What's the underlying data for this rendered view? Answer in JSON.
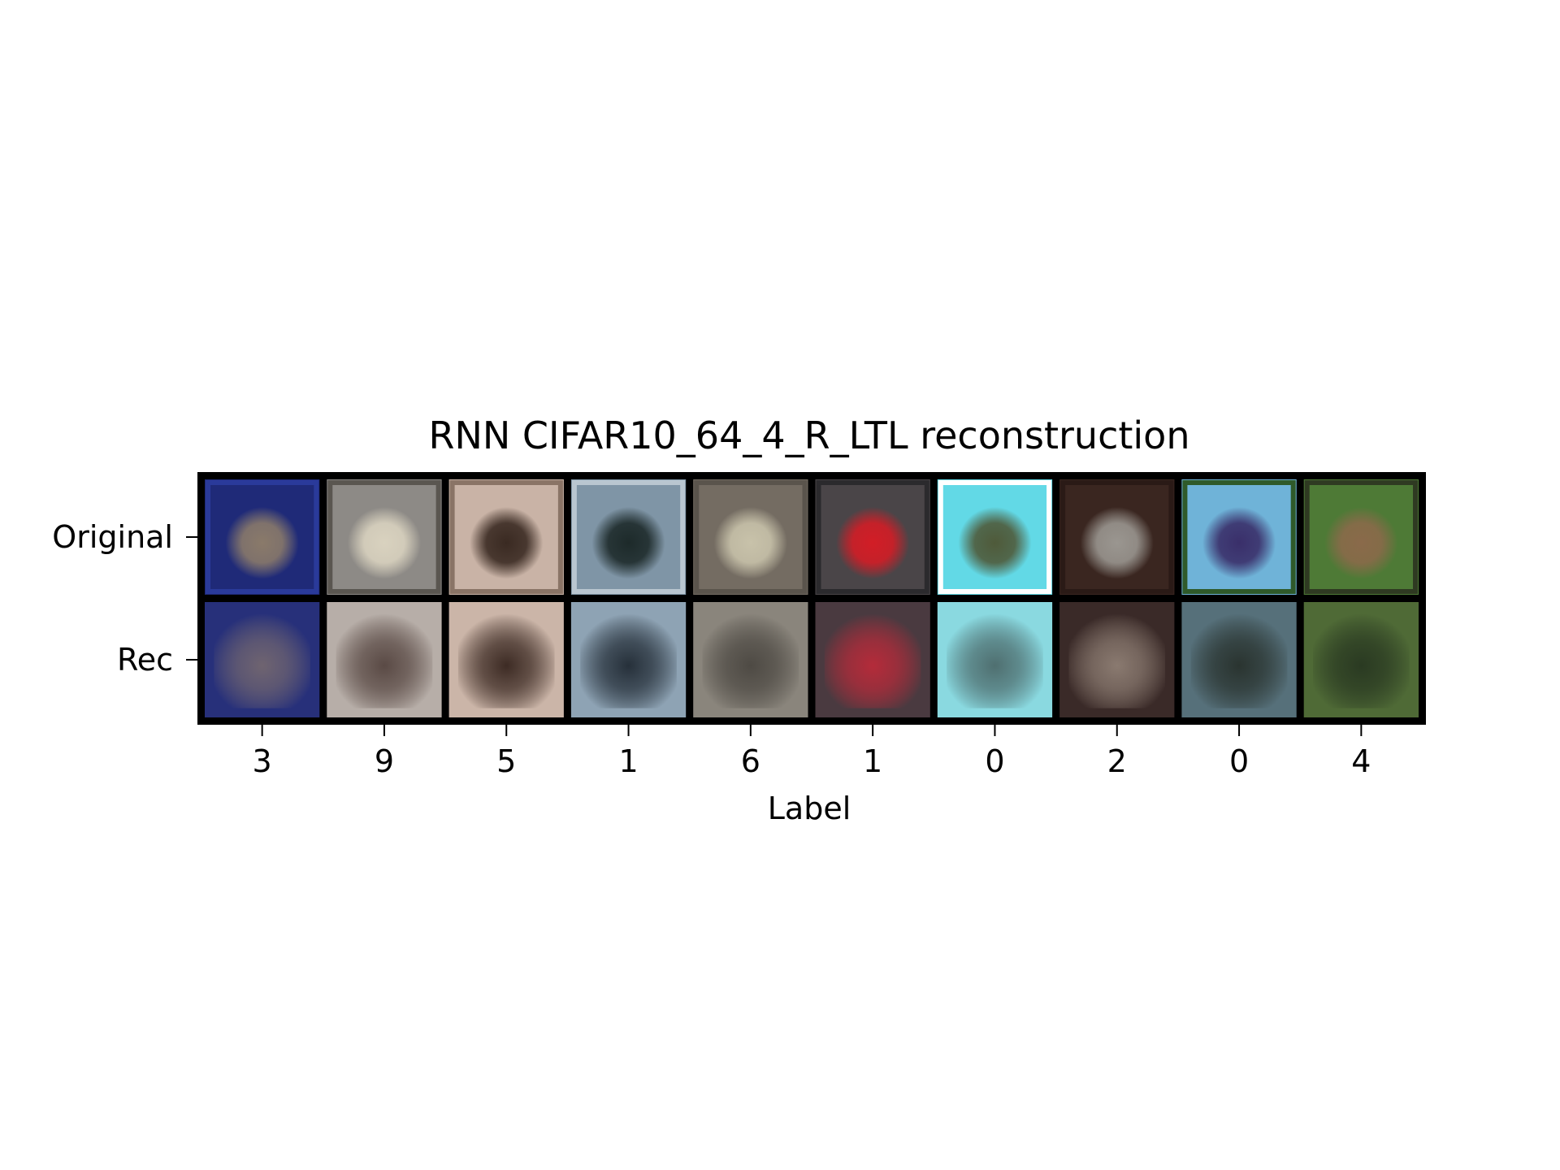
{
  "chart_data": {
    "type": "image-grid",
    "title": "RNN CIFAR10_64_4_R_LTL reconstruction",
    "xlabel": "Label",
    "ylabel": "",
    "row_labels": [
      "Original",
      "Rec"
    ],
    "x_tick_labels": [
      "3",
      "9",
      "5",
      "1",
      "6",
      "1",
      "0",
      "2",
      "0",
      "4"
    ],
    "grid": false,
    "samples": [
      {
        "label": "3",
        "original": {
          "bg": "#1f2a78",
          "fg": "#8a7a6a",
          "frame": "#2a3a9a"
        },
        "rec": {
          "bg": "#27307a",
          "fg": "#6f6470"
        }
      },
      {
        "label": "9",
        "original": {
          "bg": "#8d8a86",
          "fg": "#d9d2bf",
          "frame": "#5a5650"
        },
        "rec": {
          "bg": "#b7aea8",
          "fg": "#5a4a45"
        }
      },
      {
        "label": "5",
        "original": {
          "bg": "#c9b3a6",
          "fg": "#3a2a22",
          "frame": "#8a7466"
        },
        "rec": {
          "bg": "#cbb5a8",
          "fg": "#3d2b24"
        }
      },
      {
        "label": "1",
        "original": {
          "bg": "#7f95a6",
          "fg": "#1d2a2a",
          "frame": "#b9c6d0"
        },
        "rec": {
          "bg": "#8ea3b4",
          "fg": "#26303a"
        }
      },
      {
        "label": "6",
        "original": {
          "bg": "#746c62",
          "fg": "#c8c2aa",
          "frame": "#5a544c"
        },
        "rec": {
          "bg": "#8a857c",
          "fg": "#4e4a44"
        }
      },
      {
        "label": "1",
        "original": {
          "bg": "#4a4548",
          "fg": "#d21d26",
          "frame": "#2b2a2d"
        },
        "rec": {
          "bg": "#4a3a40",
          "fg": "#b42b3a"
        }
      },
      {
        "label": "0",
        "original": {
          "bg": "#62d9e6",
          "fg": "#4f5a3a",
          "frame": "#ffffff"
        },
        "rec": {
          "bg": "#8ad9e0",
          "fg": "#4f6f70"
        }
      },
      {
        "label": "2",
        "original": {
          "bg": "#3a2620",
          "fg": "#9a9690",
          "frame": "#2a1a16"
        },
        "rec": {
          "bg": "#3a2a28",
          "fg": "#8a7a70"
        }
      },
      {
        "label": "0",
        "original": {
          "bg": "#6fb3d8",
          "fg": "#3a2f6a",
          "frame": "#2f5a2a"
        },
        "rec": {
          "bg": "#56707a",
          "fg": "#2a3430"
        }
      },
      {
        "label": "4",
        "original": {
          "bg": "#4e7a36",
          "fg": "#8a6a4a",
          "frame": "#2f3a22"
        },
        "rec": {
          "bg": "#4f6a36",
          "fg": "#2a3a22"
        }
      }
    ]
  }
}
